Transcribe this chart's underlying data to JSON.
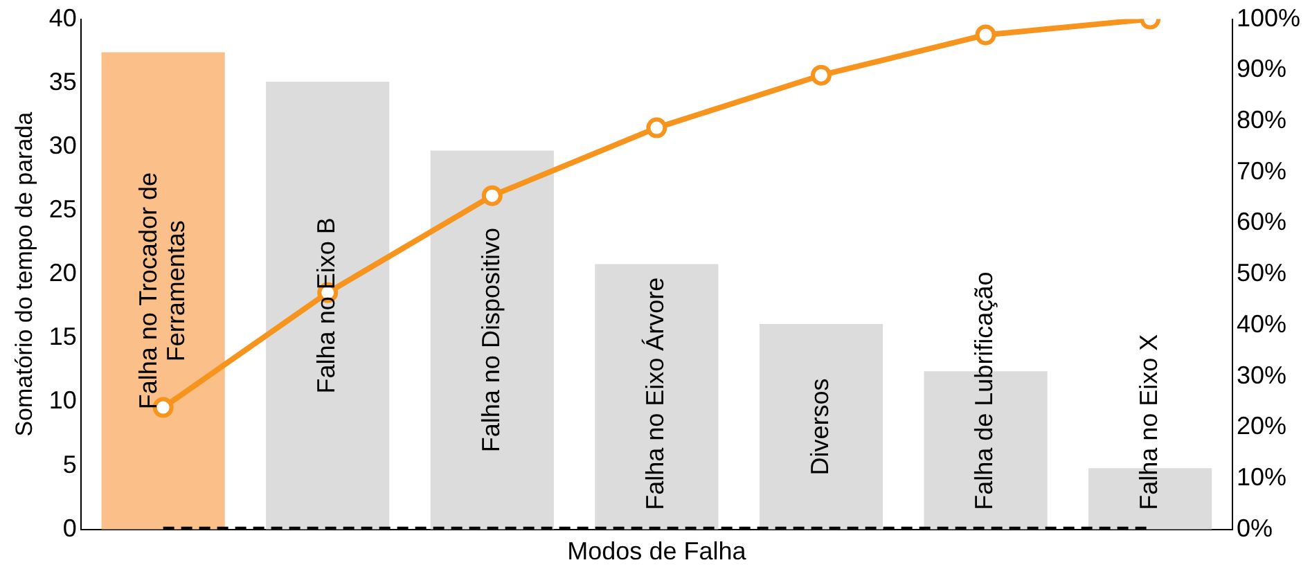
{
  "chart_data": {
    "type": "bar",
    "xlabel": "Modos de Falha",
    "ylabel": "Somatório do tempo de parada",
    "categories": [
      "Falha no Trocador de Ferramentas",
      "Falha no Eixo B",
      "Falha no Dispositivo",
      "Falha no Eixo Árvore",
      "Diversos",
      "Falha de Lubrificação",
      "Falha no Eixo X"
    ],
    "series": [
      {
        "colors": [
          "#fbbf8a",
          "#dcdcdc",
          "#dcdcdc",
          "#dcdcdc",
          "#dcdcdc",
          "#dcdcdc",
          "#dcdcdc"
        ],
        "values": [
          37.4,
          35.1,
          29.7,
          20.8,
          16.1,
          12.4,
          4.8
        ]
      },
      {
        "type": "line",
        "axis": "y2",
        "color": "#f7941d",
        "marker": "circle",
        "line_style": "solid",
        "values": [
          23.9,
          46.4,
          65.4,
          78.7,
          89.0,
          96.9,
          100
        ]
      },
      {
        "type": "line",
        "color": "#000000",
        "marker": "none",
        "line_style": "dashed",
        "values": [
          0,
          0,
          0,
          0,
          0,
          0,
          0
        ]
      }
    ],
    "ylim": [
      0,
      40
    ],
    "yticks": [
      0,
      5,
      10,
      15,
      20,
      25,
      30,
      35,
      40
    ],
    "y2lim": [
      0,
      100
    ],
    "y2ticks": [
      {
        "value": 0,
        "label": "0%"
      },
      {
        "value": 10,
        "label": "10%"
      },
      {
        "value": 20,
        "label": "20%"
      },
      {
        "value": 30,
        "label": "30%"
      },
      {
        "value": 40,
        "label": "40%"
      },
      {
        "value": 50,
        "label": "50%"
      },
      {
        "value": 60,
        "label": "60%"
      },
      {
        "value": 70,
        "label": "70%"
      },
      {
        "value": 80,
        "label": "80%"
      },
      {
        "value": 90,
        "label": "90%"
      },
      {
        "value": 100,
        "label": "100%"
      }
    ],
    "tick_labels": "y",
    "grid": false,
    "legend": false
  }
}
